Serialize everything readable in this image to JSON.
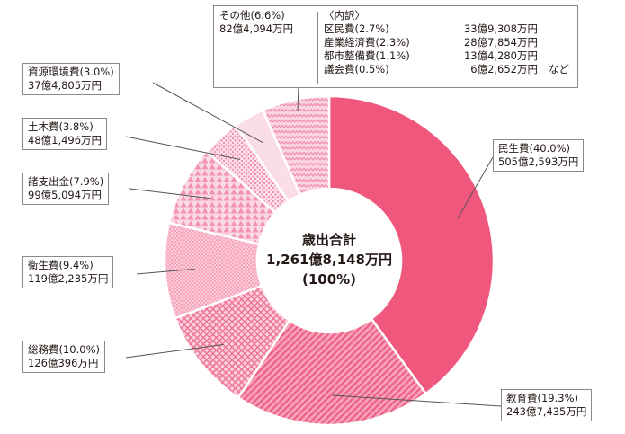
{
  "chart_data": {
    "type": "pie",
    "center": {
      "title": "歳出合計",
      "total": "1,261億8,148万円",
      "percent": "(100%)"
    },
    "slices": [
      {
        "name": "民生費",
        "percent": 40.0,
        "percent_label": "(40.0%)",
        "amount": "505億2,593万円",
        "color": "#f0577d",
        "pattern": "solid"
      },
      {
        "name": "教育費",
        "percent": 19.3,
        "percent_label": "(19.3%)",
        "amount": "243億7,435万円",
        "color": "#f47ea2",
        "pattern": "diagonal"
      },
      {
        "name": "総務費",
        "percent": 10.0,
        "percent_label": "(10.0%)",
        "amount": "126億396万円",
        "color": "#f47ea2",
        "pattern": "crosshatch"
      },
      {
        "name": "衛生費",
        "percent": 9.4,
        "percent_label": "(9.4%)",
        "amount": "119億2,235万円",
        "color": "#f47ea2",
        "pattern": "dense-dots"
      },
      {
        "name": "諸支出金",
        "percent": 7.9,
        "percent_label": "(7.9%)",
        "amount": "99億5,094万円",
        "color": "#f47ea2",
        "pattern": "triangles"
      },
      {
        "name": "土木費",
        "percent": 3.8,
        "percent_label": "(3.8%)",
        "amount": "48億1,496万円",
        "color": "#f47ea2",
        "pattern": "dots"
      },
      {
        "name": "資源環境費",
        "percent": 3.0,
        "percent_label": "(3.0%)",
        "amount": "37億4,805万円",
        "color": "#fad5e0",
        "pattern": "light"
      },
      {
        "name": "その他",
        "percent": 6.6,
        "percent_label": "(6.6%)",
        "amount": "82億4,094万円",
        "color": "#f47ea2",
        "pattern": "zigzag"
      }
    ],
    "other_breakdown": {
      "heading": "〈内訳〉",
      "items": [
        {
          "name": "区民費(2.7%)",
          "amount": "33億9,308万円"
        },
        {
          "name": "産業経済費(2.3%)",
          "amount": "28億7,854万円"
        },
        {
          "name": "都市整備費(1.1%)",
          "amount": "13億4,280万円"
        },
        {
          "name": "議会費(0.5%)",
          "amount": "6億2,652万円"
        }
      ],
      "note": "など"
    }
  }
}
